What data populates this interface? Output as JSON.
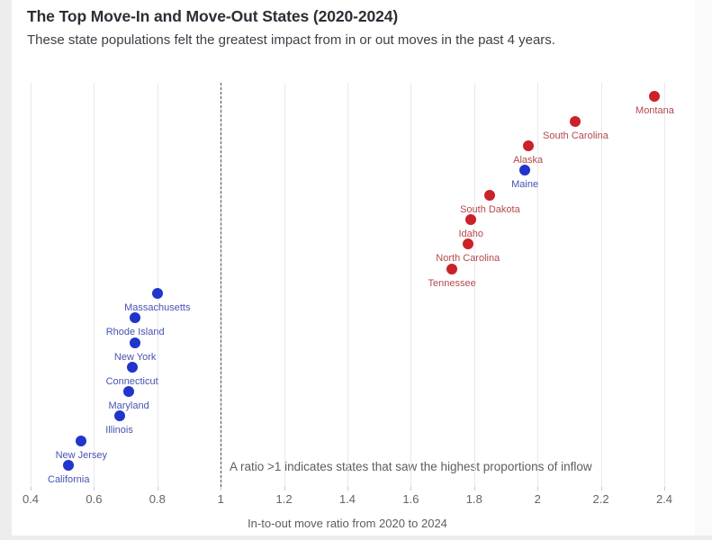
{
  "header": {
    "title": "The Top Move-In and Move-Out States (2020-2024)",
    "subtitle": "These state populations felt the greatest impact from in or out moves in the past 4 years."
  },
  "chart_data": {
    "type": "scatter",
    "title": "The Top Move-In and Move-Out States (2020-2024)",
    "subtitle": "These state populations felt the greatest impact from in or out moves in the past 4 years.",
    "xlabel": "In-to-out move ratio from 2020 to 2024",
    "ylabel": "",
    "xlim": [
      0.36,
      2.46
    ],
    "x_ticks": [
      "0.4",
      "0.6",
      "0.8",
      "1",
      "1.2",
      "1.4",
      "1.6",
      "1.8",
      "2",
      "2.2",
      "2.4"
    ],
    "grid": "vertical-major-only",
    "reference_line": {
      "x": 1,
      "style": "dashed"
    },
    "annotation": "A ratio >1 indicates states that saw the highest proportions of inflow",
    "colors": {
      "red_dot": "#cb2129",
      "red_label": "#b2494e",
      "blue_dot": "#2134cb",
      "blue_label": "#4653b0"
    },
    "points": [
      {
        "state": "Montana",
        "ratio": 2.37,
        "group": "red"
      },
      {
        "state": "South Carolina",
        "ratio": 2.12,
        "group": "red"
      },
      {
        "state": "Alaska",
        "ratio": 1.97,
        "group": "red"
      },
      {
        "state": "Maine",
        "ratio": 1.96,
        "group": "blue"
      },
      {
        "state": "South Dakota",
        "ratio": 1.85,
        "group": "red"
      },
      {
        "state": "Idaho",
        "ratio": 1.79,
        "group": "red"
      },
      {
        "state": "North Carolina",
        "ratio": 1.78,
        "group": "red"
      },
      {
        "state": "Tennessee",
        "ratio": 1.73,
        "group": "red"
      },
      {
        "state": "Massachusetts",
        "ratio": 0.8,
        "group": "blue"
      },
      {
        "state": "Rhode Island",
        "ratio": 0.73,
        "group": "blue"
      },
      {
        "state": "New York",
        "ratio": 0.73,
        "group": "blue"
      },
      {
        "state": "Connecticut",
        "ratio": 0.72,
        "group": "blue"
      },
      {
        "state": "Maryland",
        "ratio": 0.71,
        "group": "blue"
      },
      {
        "state": "Illinois",
        "ratio": 0.68,
        "group": "blue"
      },
      {
        "state": "New Jersey",
        "ratio": 0.56,
        "group": "blue"
      },
      {
        "state": "California",
        "ratio": 0.52,
        "group": "blue"
      }
    ]
  }
}
